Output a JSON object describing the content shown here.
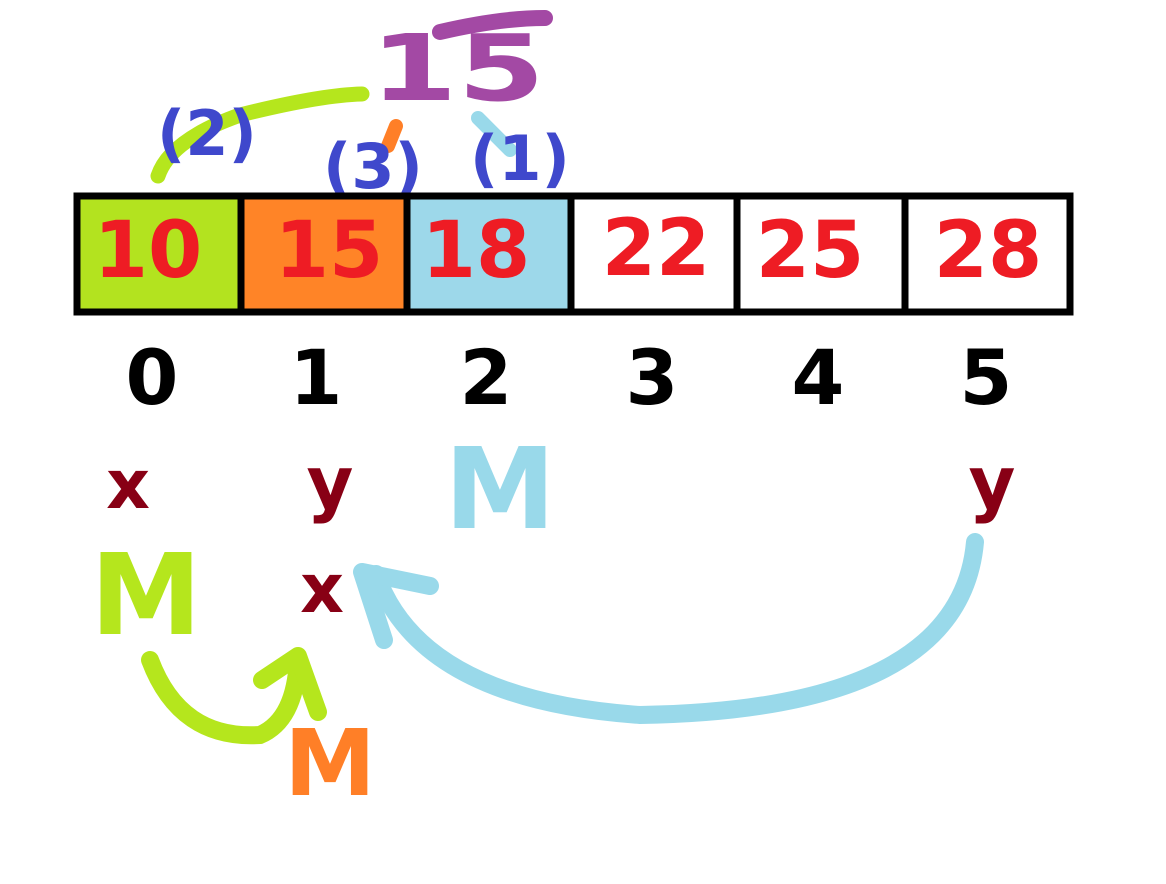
{
  "search_target": "15",
  "array": {
    "cells": [
      {
        "index": "0",
        "value": "10",
        "fill": "#b3e31f"
      },
      {
        "index": "1",
        "value": "15",
        "fill": "#ff8427"
      },
      {
        "index": "2",
        "value": "18",
        "fill": "#9dd8ea"
      },
      {
        "index": "3",
        "value": "22",
        "fill": "#ffffff"
      },
      {
        "index": "4",
        "value": "25",
        "fill": "#ffffff"
      },
      {
        "index": "5",
        "value": "28",
        "fill": "#ffffff"
      }
    ]
  },
  "steps": [
    "(2)",
    "(3)",
    "(1)"
  ],
  "pointer_labels": {
    "x_start": "x",
    "y_start": "y",
    "m_first": "M",
    "y_end": "y",
    "m_second": "M",
    "x_moved": "x",
    "m_third": "M"
  },
  "colors": {
    "value_text": "#ee1c24",
    "index_text": "#000000",
    "pointer_text": "#880015",
    "step_text": "#3f48cc",
    "target_text": "#a349a4",
    "green": "#b5e61d",
    "blue": "#99d9ea",
    "orange": "#ff7f27"
  }
}
